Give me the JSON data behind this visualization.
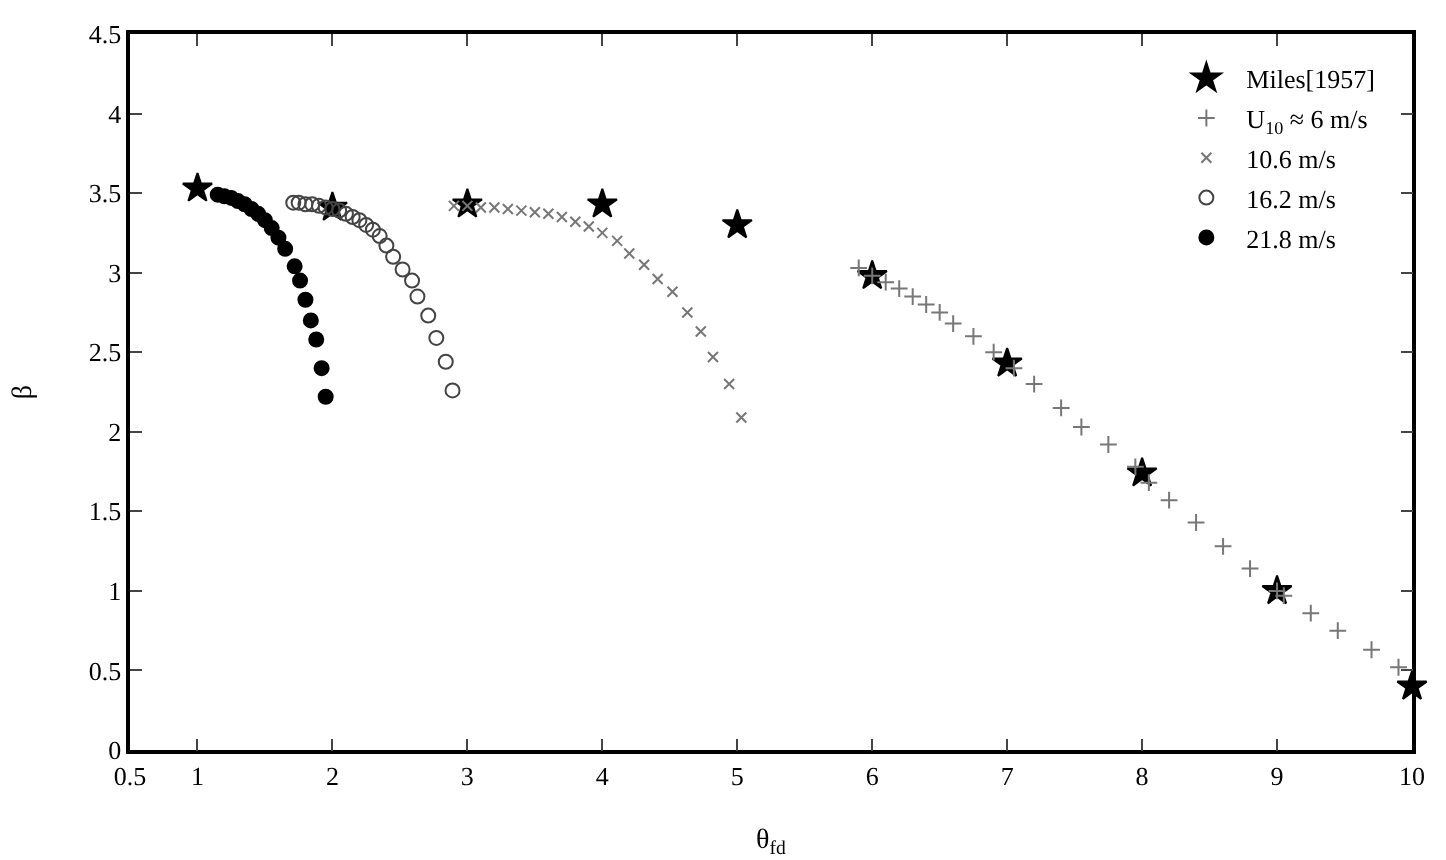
{
  "chart_data": {
    "type": "scatter",
    "xlabel": "θ$_{fd}$",
    "ylabel": "β",
    "xlim": [
      0.5,
      10
    ],
    "xticks": [
      0.5,
      1,
      2,
      3,
      4,
      5,
      6,
      7,
      8,
      9,
      10
    ],
    "ylim": [
      0,
      4.5
    ],
    "yticks": [
      0,
      0.5,
      1,
      1.5,
      2,
      2.5,
      3,
      3.5,
      4,
      4.5
    ],
    "grid": false,
    "legend": "top right",
    "series": [
      {
        "name": "Miles[1957]",
        "color": "#000000",
        "marker": "star",
        "x": [
          1,
          2,
          3,
          4,
          5,
          6,
          7,
          8,
          9,
          10
        ],
        "values": [
          3.53,
          3.41,
          3.43,
          3.43,
          3.3,
          2.98,
          2.43,
          1.74,
          1.0,
          0.4
        ]
      },
      {
        "name": "U$_{10}$ ≈ 6 m/s",
        "color": "#777777",
        "marker": "cross",
        "x": [
          5.9,
          6.0,
          6.1,
          6.2,
          6.3,
          6.4,
          6.5,
          6.6,
          6.75,
          6.9,
          7.05,
          7.2,
          7.4,
          7.55,
          7.75,
          7.95,
          8.05,
          8.2,
          8.4,
          8.6,
          8.8,
          9.0,
          9.05,
          9.25,
          9.45,
          9.7,
          9.9
        ],
        "values": [
          3.03,
          2.98,
          2.94,
          2.9,
          2.85,
          2.8,
          2.75,
          2.68,
          2.6,
          2.5,
          2.4,
          2.3,
          2.15,
          2.03,
          1.92,
          1.78,
          1.68,
          1.57,
          1.43,
          1.28,
          1.14,
          1.0,
          0.97,
          0.86,
          0.75,
          0.63,
          0.52
        ]
      },
      {
        "name": "10.6 m/s",
        "color": "#777777",
        "marker": "x",
        "x": [
          2.9,
          3.0,
          3.1,
          3.2,
          3.3,
          3.4,
          3.5,
          3.6,
          3.7,
          3.8,
          3.9,
          4.0,
          4.11,
          4.2,
          4.31,
          4.41,
          4.52,
          4.63,
          4.73,
          4.82,
          4.94,
          5.03
        ],
        "values": [
          3.42,
          3.42,
          3.41,
          3.41,
          3.4,
          3.39,
          3.38,
          3.37,
          3.35,
          3.32,
          3.29,
          3.25,
          3.2,
          3.12,
          3.05,
          2.96,
          2.88,
          2.75,
          2.63,
          2.47,
          2.3,
          2.09
        ]
      },
      {
        "name": "16.2 m/s",
        "color": "#444444",
        "marker": "circle-open",
        "x": [
          1.71,
          1.75,
          1.8,
          1.85,
          1.9,
          1.95,
          2.0,
          2.05,
          2.1,
          2.15,
          2.2,
          2.25,
          2.3,
          2.35,
          2.4,
          2.45,
          2.52,
          2.59,
          2.63,
          2.71,
          2.77,
          2.84,
          2.89
        ],
        "values": [
          3.44,
          3.44,
          3.43,
          3.43,
          3.42,
          3.41,
          3.4,
          3.39,
          3.37,
          3.35,
          3.33,
          3.3,
          3.27,
          3.23,
          3.17,
          3.1,
          3.02,
          2.95,
          2.85,
          2.73,
          2.59,
          2.44,
          2.26
        ]
      },
      {
        "name": "21.8 m/s",
        "color": "#000000",
        "marker": "circle",
        "x": [
          1.15,
          1.2,
          1.25,
          1.3,
          1.35,
          1.4,
          1.45,
          1.5,
          1.55,
          1.6,
          1.65,
          1.72,
          1.76,
          1.8,
          1.84,
          1.88,
          1.92,
          1.95
        ],
        "values": [
          3.49,
          3.48,
          3.47,
          3.45,
          3.43,
          3.4,
          3.37,
          3.33,
          3.28,
          3.22,
          3.15,
          3.04,
          2.95,
          2.83,
          2.7,
          2.58,
          2.4,
          2.22
        ]
      }
    ]
  }
}
